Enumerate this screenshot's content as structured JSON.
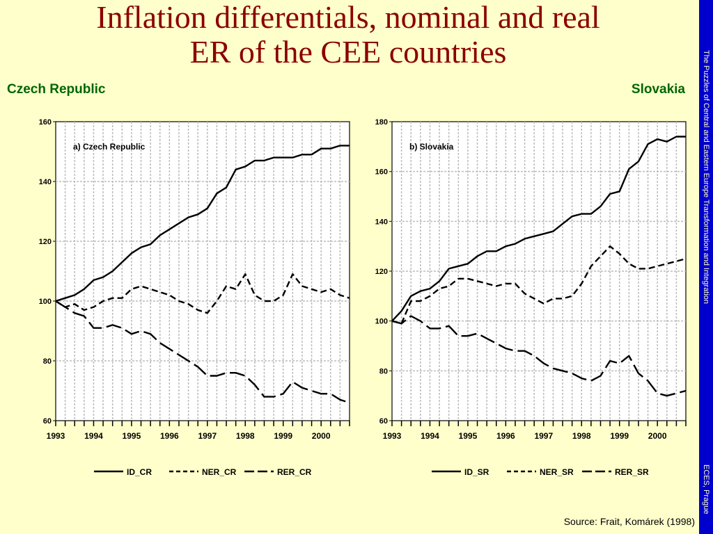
{
  "slide": {
    "title_line1": "Inflation differentials, nominal and real",
    "title_line2": "ER of the CEE countries",
    "left_label": "Czech Republic",
    "right_label": "Slovakia",
    "sidebar_text": "The Puzzles of Central and Eastern Europe Transformation and Integration",
    "sidebar_org": "ECES, Prague",
    "source": "Source: Frait, Komárek (1998)",
    "colors": {
      "background": "#ffffcc",
      "title": "#8b0000",
      "country_label": "#006600",
      "sidebar": "#0000cc"
    }
  },
  "chart_data": [
    {
      "type": "line",
      "title": "a) Czech Republic",
      "x_tick_labels": [
        "1993",
        "1994",
        "1995",
        "1996",
        "1997",
        "1998",
        "1999",
        "2000"
      ],
      "yticks": [
        60,
        80,
        100,
        120,
        140,
        160
      ],
      "ylim": [
        60,
        160
      ],
      "xlim": [
        1993,
        2000.75
      ],
      "x": [
        1993,
        1993.25,
        1993.5,
        1993.75,
        1994,
        1994.25,
        1994.5,
        1994.75,
        1995,
        1995.25,
        1995.5,
        1995.75,
        1996,
        1996.25,
        1996.5,
        1996.75,
        1997,
        1997.25,
        1997.5,
        1997.75,
        1998,
        1998.25,
        1998.5,
        1998.75,
        1999,
        1999.25,
        1999.5,
        1999.75,
        2000,
        2000.25,
        2000.5,
        2000.75
      ],
      "grid": true,
      "legend_position": "bottom",
      "series": [
        {
          "name": "ID_CR",
          "dash": "solid",
          "values": [
            100,
            101,
            102,
            104,
            107,
            108,
            110,
            113,
            116,
            118,
            119,
            122,
            124,
            126,
            128,
            129,
            131,
            136,
            138,
            144,
            145,
            147,
            147,
            148,
            148,
            148,
            149,
            149,
            151,
            151,
            152,
            152
          ]
        },
        {
          "name": "NER_CR",
          "dash": "dashed",
          "values": [
            100,
            98,
            99,
            97,
            98,
            100,
            101,
            101,
            104,
            105,
            104,
            103,
            102,
            100,
            99,
            97,
            96,
            100,
            105,
            104,
            109,
            102,
            100,
            100,
            102,
            109,
            105,
            104,
            103,
            104,
            102,
            101
          ]
        },
        {
          "name": "RER_CR",
          "dash": "longdash",
          "values": [
            100,
            98,
            96,
            95,
            91,
            91,
            92,
            91,
            89,
            90,
            89,
            86,
            84,
            82,
            80,
            78,
            75,
            75,
            76,
            76,
            75,
            72,
            68,
            68,
            69,
            73,
            71,
            70,
            69,
            69,
            67,
            66
          ]
        }
      ]
    },
    {
      "type": "line",
      "title": "b) Slovakia",
      "x_tick_labels": [
        "1993",
        "1994",
        "1995",
        "1996",
        "1997",
        "1998",
        "1999",
        "2000"
      ],
      "yticks": [
        60,
        80,
        100,
        120,
        140,
        160,
        180
      ],
      "ylim": [
        60,
        180
      ],
      "xlim": [
        1993,
        2000.75
      ],
      "x": [
        1993,
        1993.25,
        1993.5,
        1993.75,
        1994,
        1994.25,
        1994.5,
        1994.75,
        1995,
        1995.25,
        1995.5,
        1995.75,
        1996,
        1996.25,
        1996.5,
        1996.75,
        1997,
        1997.25,
        1997.5,
        1997.75,
        1998,
        1998.25,
        1998.5,
        1998.75,
        1999,
        1999.25,
        1999.5,
        1999.75,
        2000,
        2000.25,
        2000.5,
        2000.75
      ],
      "grid": true,
      "legend_position": "bottom",
      "series": [
        {
          "name": "ID_SR",
          "dash": "solid",
          "values": [
            100,
            104,
            110,
            112,
            113,
            116,
            121,
            122,
            123,
            126,
            128,
            128,
            130,
            131,
            133,
            134,
            135,
            136,
            139,
            142,
            143,
            143,
            146,
            151,
            152,
            161,
            164,
            171,
            173,
            172,
            174,
            174
          ]
        },
        {
          "name": "NER_SR",
          "dash": "dashed",
          "values": [
            100,
            99,
            108,
            108,
            110,
            113,
            114,
            117,
            117,
            116,
            115,
            114,
            115,
            115,
            111,
            109,
            107,
            109,
            109,
            110,
            115,
            122,
            126,
            130,
            127,
            123,
            121,
            121,
            122,
            123,
            124,
            125
          ]
        },
        {
          "name": "RER_SR",
          "dash": "longdash",
          "values": [
            100,
            99,
            102,
            100,
            97,
            97,
            98,
            94,
            94,
            95,
            93,
            91,
            89,
            88,
            88,
            86,
            83,
            81,
            80,
            79,
            77,
            76,
            78,
            84,
            83,
            86,
            79,
            76,
            71,
            70,
            71,
            72
          ]
        }
      ]
    }
  ]
}
